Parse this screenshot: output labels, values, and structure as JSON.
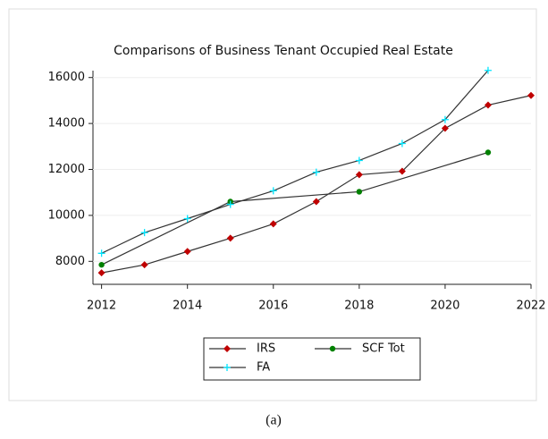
{
  "chart_data": {
    "type": "line",
    "title": "Comparisons of Business Tenant Occupied Real Estate",
    "line_color": "#333333",
    "grid": true,
    "xlim": [
      2011.8,
      2022
    ],
    "xticks": [
      2012,
      2014,
      2016,
      2018,
      2020,
      2022
    ],
    "ylim": [
      7000,
      16300
    ],
    "yticks": [
      8000,
      10000,
      12000,
      14000,
      16000
    ],
    "series": [
      {
        "name": "IRS",
        "color": "#c00000",
        "marker": "diamond",
        "x": [
          2012,
          2013,
          2014,
          2015,
          2016,
          2017,
          2018,
          2019,
          2020,
          2021,
          2022
        ],
        "values": [
          7500,
          7850,
          8430,
          9010,
          9630,
          10600,
          11770,
          11920,
          13790,
          14800,
          15220
        ]
      },
      {
        "name": "SCF Tot",
        "color": "#008000",
        "marker": "circle",
        "x": [
          2012,
          2015,
          2018,
          2021
        ],
        "values": [
          7850,
          10600,
          11030,
          12740
        ]
      },
      {
        "name": "FA",
        "color": "#00e5ff",
        "marker": "plus",
        "x": [
          2012,
          2013,
          2014,
          2015,
          2016,
          2017,
          2018,
          2019,
          2020,
          2021
        ],
        "values": [
          8350,
          9250,
          9860,
          10480,
          11070,
          11880,
          12390,
          13130,
          14170,
          16310
        ]
      }
    ]
  },
  "caption": "(a)"
}
